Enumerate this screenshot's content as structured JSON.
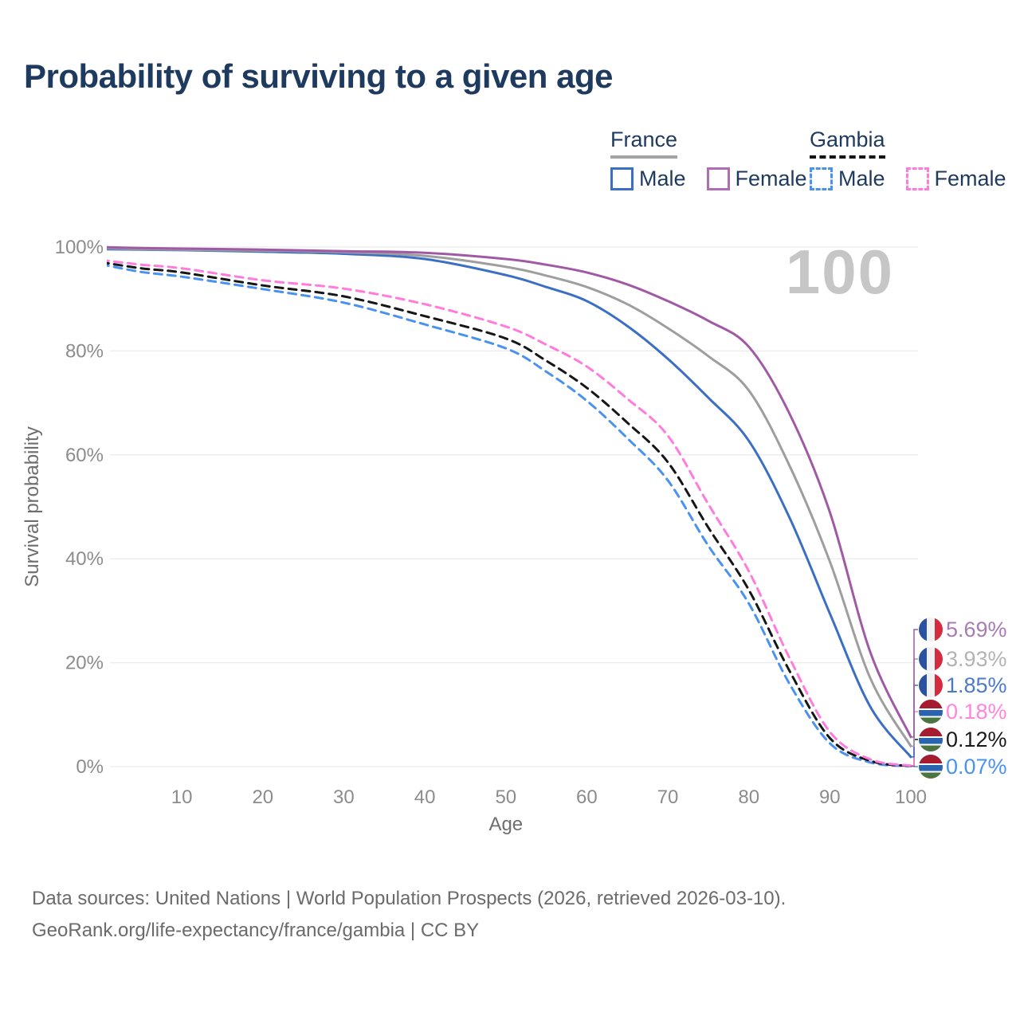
{
  "title": "Probability of surviving to a given age",
  "watermark_age": "100",
  "legend": {
    "groups": [
      {
        "id": "france",
        "label": "France",
        "underline_color": "#a3a3a3",
        "underline_style": "solid",
        "items": [
          {
            "label": "Male",
            "color": "#3b6fc4",
            "dashed": false
          },
          {
            "label": "Female",
            "color": "#b06cb5",
            "dashed": false
          }
        ]
      },
      {
        "id": "gambia",
        "label": "Gambia",
        "underline_color": "#141414",
        "underline_style": "dashed",
        "items": [
          {
            "label": "Male",
            "color": "#4a92f0",
            "dashed": true
          },
          {
            "label": "Female",
            "color": "#ff7bdc",
            "dashed": true
          }
        ]
      }
    ]
  },
  "chart_data": {
    "type": "line",
    "title": "Probability of surviving to a given age",
    "xlabel": "Age",
    "ylabel": "Survival probability",
    "xlim": [
      0,
      100
    ],
    "ylim": [
      0,
      100
    ],
    "x_ticks": [
      10,
      20,
      30,
      40,
      50,
      60,
      70,
      80,
      90,
      100
    ],
    "y_ticks": [
      0,
      20,
      40,
      60,
      80,
      100
    ],
    "y_tick_labels": [
      "0%",
      "20%",
      "40%",
      "60%",
      "80%",
      "100%"
    ],
    "grid": true,
    "legend_position": "top-right",
    "x": [
      0,
      5,
      10,
      20,
      30,
      40,
      50,
      55,
      60,
      65,
      70,
      75,
      80,
      85,
      90,
      95,
      100
    ],
    "series": [
      {
        "id": "gambia-male",
        "name": "Gambia — Male",
        "color": "#4a92f0",
        "dashed": true,
        "values": [
          96.7,
          95.2,
          94.3,
          91.9,
          89.3,
          85.1,
          80.5,
          76.0,
          70.4,
          63.2,
          55.1,
          42.5,
          31.4,
          16.0,
          4.5,
          0.8,
          0.07
        ],
        "end_label": "0.07%",
        "end_label_color": "#4a92f0",
        "flag": "gambia"
      },
      {
        "id": "gambia-total",
        "name": "Gambia — Both sexes",
        "color": "#161616",
        "dashed": true,
        "values": [
          97.1,
          95.9,
          95.1,
          92.6,
          90.5,
          86.7,
          82.4,
          78.1,
          72.9,
          66.2,
          58.6,
          46.0,
          34.0,
          18.5,
          5.5,
          1.1,
          0.12
        ],
        "end_label": "0.12%",
        "end_label_color": "#1a1a1a",
        "flag": "gambia"
      },
      {
        "id": "gambia-female",
        "name": "Gambia — Female",
        "color": "#ff7bdc",
        "dashed": true,
        "values": [
          97.5,
          96.6,
          95.9,
          93.6,
          92.0,
          89.0,
          84.7,
          81.2,
          77.0,
          70.8,
          63.7,
          50.5,
          37.6,
          21.0,
          6.7,
          1.4,
          0.18
        ],
        "end_label": "0.18%",
        "end_label_color": "#ff85dd",
        "flag": "gambia"
      },
      {
        "id": "france-male",
        "name": "France — Male",
        "color": "#3b6fc4",
        "dashed": false,
        "values": [
          99.6,
          99.5,
          99.4,
          99.1,
          98.7,
          97.7,
          94.6,
          92.3,
          89.6,
          84.8,
          78.5,
          71.0,
          62.7,
          48.0,
          29.5,
          11.5,
          1.85
        ],
        "end_label": "1.85%",
        "end_label_color": "#4b7bc8",
        "flag": "france"
      },
      {
        "id": "france-total",
        "name": "France — Both sexes",
        "color": "#9e9e9e",
        "dashed": false,
        "values": [
          99.8,
          99.6,
          99.5,
          99.3,
          99.0,
          98.3,
          96.2,
          94.5,
          92.3,
          89.0,
          84.4,
          79.0,
          72.4,
          58.0,
          39.5,
          17.0,
          3.93
        ],
        "end_label": "3.93%",
        "end_label_color": "#b3b3b3",
        "flag": "france"
      },
      {
        "id": "france-female",
        "name": "France — Female",
        "color": "#a05aa5",
        "dashed": false,
        "values": [
          100,
          99.8,
          99.7,
          99.5,
          99.2,
          98.9,
          97.7,
          96.6,
          95.1,
          92.8,
          89.6,
          85.8,
          80.8,
          68.0,
          49.0,
          22.0,
          5.69
        ],
        "end_label": "5.69%",
        "end_label_color": "#a87bb3",
        "flag": "france"
      }
    ],
    "end_label_order_top_to_bottom": [
      "5.69%",
      "3.93%",
      "1.85%",
      "0.18%",
      "0.12%",
      "0.07%"
    ],
    "annotations": {
      "age_watermark": "100"
    }
  },
  "flag_colors": {
    "france": {
      "blue": "#2a52a0",
      "white": "#f2f2f2",
      "red": "#d52b3f"
    },
    "gambia": {
      "red": "#a51c30",
      "blue": "#2a63b0",
      "green": "#4b7440",
      "separator": "#ffffff"
    }
  },
  "footer": {
    "line1": "Data sources: United Nations | World Population Prospects (2026, retrieved 2026-03-10).",
    "line2": "GeoRank.org/life-expectancy/france/gambia | CC BY"
  }
}
